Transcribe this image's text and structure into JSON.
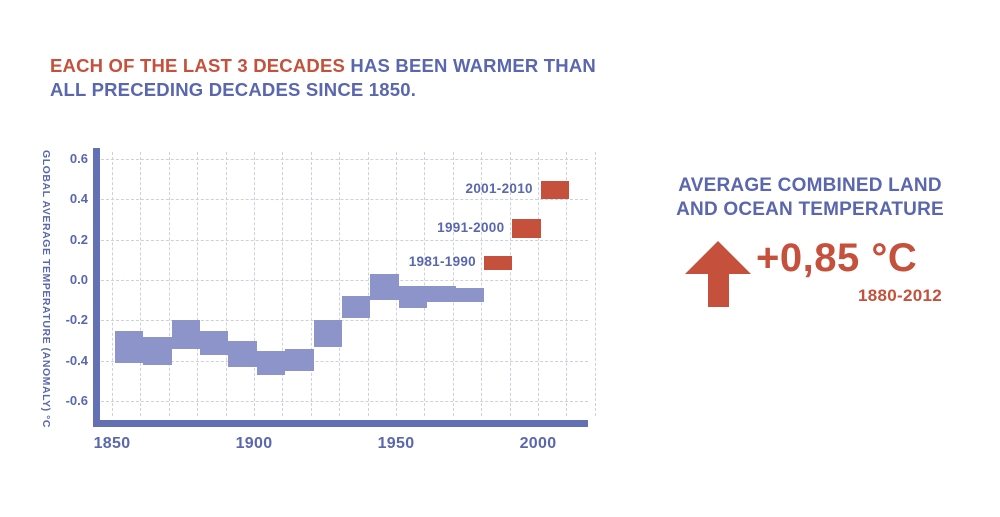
{
  "title": {
    "highlight": "EACH OF THE LAST 3 DECADES ",
    "rest_line1": "HAS BEEN WARMER THAN",
    "line2": "ALL PRECEDING DECADES SINCE 1850."
  },
  "chart_data": {
    "type": "bar",
    "title": "",
    "xlabel": "",
    "ylabel": "GLOBAL AVERAGE TEMPERATURE (ANOMALY) °C",
    "x_range": [
      1850,
      2022
    ],
    "ylim": [
      -0.7,
      0.7
    ],
    "x_ticks": [
      "1850",
      "1900",
      "1950",
      "2000"
    ],
    "y_ticks": [
      "0.6",
      "0.4",
      "0.2",
      "0.0",
      "-0.2",
      "-0.4",
      "-0.6"
    ],
    "grid": true,
    "note": "each bar spans one decade; values are the low/high of the decadal global temperature anomaly range in °C",
    "bars": [
      {
        "decade": "1851-1860",
        "low": -0.41,
        "high": -0.25,
        "color": "blue",
        "labeled": false
      },
      {
        "decade": "1861-1870",
        "low": -0.42,
        "high": -0.28,
        "color": "blue",
        "labeled": false
      },
      {
        "decade": "1871-1880",
        "low": -0.34,
        "high": -0.2,
        "color": "blue",
        "labeled": false
      },
      {
        "decade": "1881-1890",
        "low": -0.37,
        "high": -0.25,
        "color": "blue",
        "labeled": false
      },
      {
        "decade": "1891-1900",
        "low": -0.43,
        "high": -0.3,
        "color": "blue",
        "labeled": false
      },
      {
        "decade": "1901-1910",
        "low": -0.47,
        "high": -0.35,
        "color": "blue",
        "labeled": false
      },
      {
        "decade": "1911-1920",
        "low": -0.45,
        "high": -0.34,
        "color": "blue",
        "labeled": false
      },
      {
        "decade": "1921-1930",
        "low": -0.33,
        "high": -0.2,
        "color": "blue",
        "labeled": false
      },
      {
        "decade": "1931-1940",
        "low": -0.19,
        "high": -0.08,
        "color": "blue",
        "labeled": false
      },
      {
        "decade": "1941-1950",
        "low": -0.1,
        "high": 0.03,
        "color": "blue",
        "labeled": false
      },
      {
        "decade": "1951-1960",
        "low": -0.14,
        "high": -0.03,
        "color": "blue",
        "labeled": false
      },
      {
        "decade": "1961-1970",
        "low": -0.11,
        "high": -0.03,
        "color": "blue",
        "labeled": false
      },
      {
        "decade": "1971-1980",
        "low": -0.11,
        "high": -0.04,
        "color": "blue",
        "labeled": false
      },
      {
        "decade": "1981-1990",
        "low": 0.05,
        "high": 0.12,
        "color": "red",
        "labeled": true
      },
      {
        "decade": "1991-2000",
        "low": 0.21,
        "high": 0.3,
        "color": "red",
        "labeled": true
      },
      {
        "decade": "2001-2010",
        "low": 0.4,
        "high": 0.49,
        "color": "red",
        "labeled": true
      }
    ],
    "colors": {
      "blue_bar": "#8c94c9",
      "red_bar": "#c5503c",
      "axis": "#6470b4",
      "grid": "#ccd0e2",
      "tick_text": "#5a67ae"
    },
    "legend_position": "none"
  },
  "panel": {
    "heading_line1": "AVERAGE COMBINED LAND",
    "heading_line2": "AND OCEAN TEMPERATURE",
    "value": "+0,85 °C",
    "period": "1880-2012",
    "arrow_icon": "up-arrow-icon",
    "accent_color": "#c5503c",
    "heading_color": "#5a67ae"
  }
}
